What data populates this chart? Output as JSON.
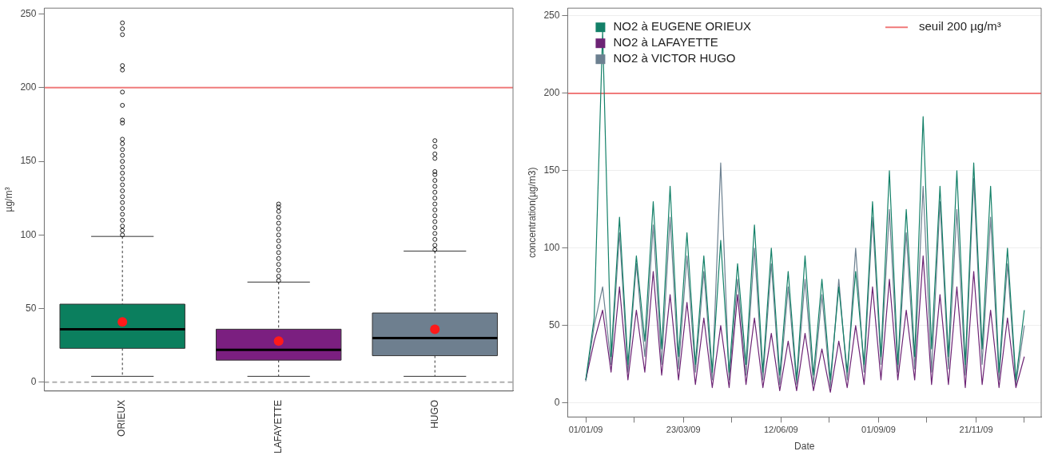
{
  "chart_data": [
    {
      "type": "box",
      "categories": [
        "ORIEUX",
        "LAFAYETTE",
        "HUGO"
      ],
      "ylabel": "µg/m³",
      "ylim": [
        -6,
        254
      ],
      "yticks": [
        0,
        50,
        100,
        150,
        200,
        250
      ],
      "colors": [
        "#0b7f5e",
        "#7b1f80",
        "#6e7f8f"
      ],
      "grid": false,
      "legend": false,
      "boxes": [
        {
          "low": 4,
          "q1": 23,
          "median": 36,
          "q3": 53,
          "high": 99,
          "mean": 41,
          "outliers": [
            100,
            103,
            106,
            110,
            114,
            118,
            122,
            126,
            130,
            134,
            138,
            142,
            146,
            150,
            154,
            158,
            162,
            165,
            176,
            178,
            188,
            197,
            212,
            215,
            236,
            240,
            244
          ]
        },
        {
          "low": 4,
          "q1": 15,
          "median": 22,
          "q3": 36,
          "high": 68,
          "mean": 28,
          "outliers": [
            69,
            72,
            76,
            80,
            84,
            88,
            92,
            96,
            100,
            104,
            108,
            112,
            116,
            119,
            121
          ]
        },
        {
          "low": 4,
          "q1": 18,
          "median": 30,
          "q3": 47,
          "high": 89,
          "mean": 36,
          "outliers": [
            90,
            93,
            97,
            101,
            105,
            109,
            113,
            117,
            121,
            125,
            129,
            133,
            137,
            141,
            143,
            152,
            155,
            160,
            164
          ]
        }
      ],
      "ref_lines": [
        {
          "axis": "y",
          "value": 200,
          "color": "#f07b7b",
          "line_style": "solid"
        },
        {
          "axis": "y",
          "value": 0,
          "color": "#b0b0b0",
          "line_style": "dashed"
        }
      ]
    },
    {
      "type": "line",
      "xlabel": "Date",
      "ylabel": "concentration(µg/m3)",
      "ylim": [
        -9,
        255
      ],
      "yticks": [
        0,
        50,
        100,
        150,
        200,
        250
      ],
      "xlim": [
        "2008-12-17",
        "2010-01-14"
      ],
      "xticks": [
        {
          "value": "2009-01-01",
          "label": "01/01/09"
        },
        {
          "value": "2009-02-10",
          "label": null
        },
        {
          "value": "2009-03-23",
          "label": "23/03/09"
        },
        {
          "value": "2009-05-02",
          "label": null
        },
        {
          "value": "2009-06-12",
          "label": "12/06/09"
        },
        {
          "value": "2009-07-22",
          "label": null
        },
        {
          "value": "2009-09-01",
          "label": "01/09/09"
        },
        {
          "value": "2009-10-11",
          "label": null
        },
        {
          "value": "2009-11-21",
          "label": "21/11/09"
        },
        {
          "value": "2009-12-31",
          "label": null
        }
      ],
      "grid": "y",
      "legend": "top left",
      "marker": "none",
      "x": [
        "2009-01-01",
        "2009-01-08",
        "2009-01-15",
        "2009-01-22",
        "2009-01-29",
        "2009-02-05",
        "2009-02-12",
        "2009-02-19",
        "2009-02-26",
        "2009-03-05",
        "2009-03-12",
        "2009-03-19",
        "2009-03-26",
        "2009-04-02",
        "2009-04-09",
        "2009-04-16",
        "2009-04-23",
        "2009-04-30",
        "2009-05-07",
        "2009-05-14",
        "2009-05-21",
        "2009-05-28",
        "2009-06-04",
        "2009-06-11",
        "2009-06-18",
        "2009-06-25",
        "2009-07-02",
        "2009-07-09",
        "2009-07-16",
        "2009-07-23",
        "2009-07-30",
        "2009-08-06",
        "2009-08-13",
        "2009-08-20",
        "2009-08-27",
        "2009-09-03",
        "2009-09-10",
        "2009-09-17",
        "2009-09-24",
        "2009-10-01",
        "2009-10-08",
        "2009-10-15",
        "2009-10-22",
        "2009-10-29",
        "2009-11-05",
        "2009-11-12",
        "2009-11-19",
        "2009-11-26",
        "2009-12-03",
        "2009-12-10",
        "2009-12-17",
        "2009-12-24",
        "2009-12-31"
      ],
      "series": [
        {
          "name": "NO2 à EUGENE ORIEUX",
          "color": "#138068",
          "values": [
            15,
            55,
            240,
            30,
            120,
            25,
            95,
            40,
            130,
            35,
            140,
            30,
            110,
            25,
            95,
            20,
            105,
            20,
            90,
            25,
            115,
            20,
            100,
            18,
            85,
            15,
            95,
            18,
            80,
            15,
            75,
            20,
            85,
            25,
            130,
            30,
            150,
            25,
            125,
            30,
            185,
            35,
            140,
            30,
            150,
            25,
            155,
            35,
            140,
            20,
            100,
            15,
            60
          ]
        },
        {
          "name": "NO2 à LAFAYETTE",
          "color": "#6d2475",
          "values": [
            15,
            40,
            60,
            20,
            75,
            15,
            60,
            20,
            85,
            18,
            70,
            15,
            65,
            12,
            55,
            10,
            50,
            10,
            70,
            12,
            55,
            10,
            45,
            8,
            40,
            8,
            45,
            8,
            35,
            7,
            40,
            10,
            50,
            12,
            75,
            15,
            80,
            15,
            60,
            15,
            95,
            12,
            70,
            12,
            75,
            10,
            85,
            12,
            60,
            10,
            55,
            10,
            30
          ]
        },
        {
          "name": "NO2 à VICTOR HUGO",
          "color": "#6c8090",
          "values": [
            14,
            50,
            75,
            25,
            110,
            20,
            90,
            30,
            115,
            25,
            120,
            22,
            95,
            20,
            85,
            15,
            155,
            15,
            80,
            18,
            100,
            15,
            90,
            12,
            75,
            12,
            80,
            12,
            70,
            10,
            80,
            15,
            100,
            20,
            120,
            25,
            125,
            20,
            110,
            22,
            140,
            20,
            130,
            22,
            125,
            18,
            145,
            25,
            120,
            15,
            90,
            12,
            50
          ]
        }
      ],
      "ref_lines": [
        {
          "axis": "y",
          "value": 200,
          "label": "seuil 200 µg/m³",
          "color": "#f07b7b",
          "line_style": "solid"
        }
      ]
    }
  ]
}
